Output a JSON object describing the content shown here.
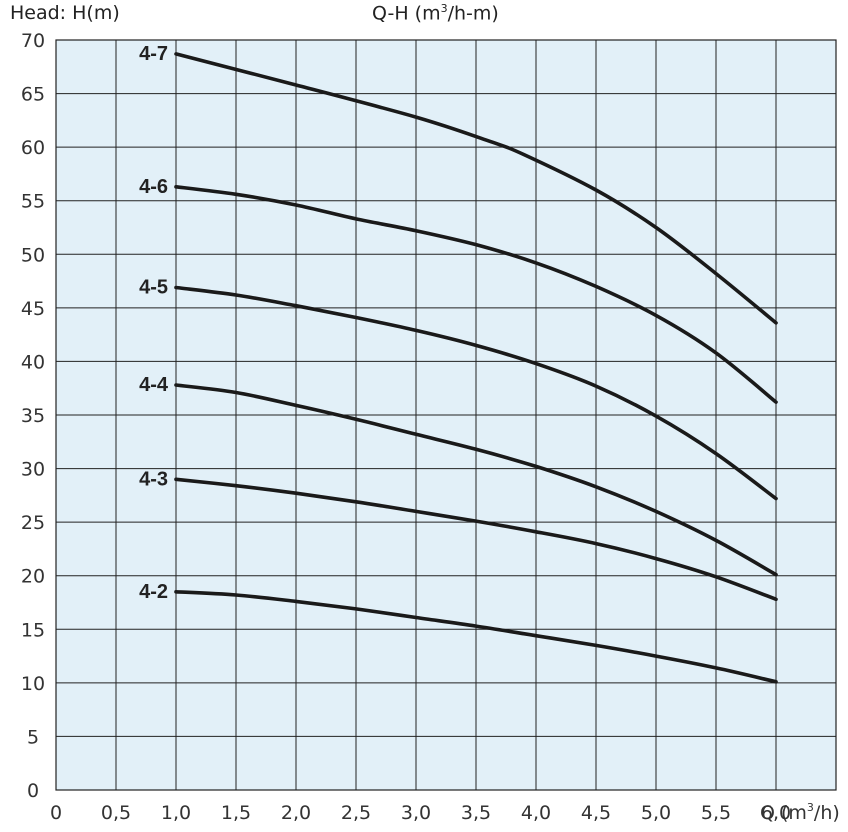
{
  "chart_data": {
    "type": "line",
    "title_main": "Q-H (m",
    "title_sup": "3",
    "title_end": "/h-m)",
    "ylabel": "Head: H(m)",
    "xlabel_main": "Q (m",
    "xlabel_sup": "3",
    "xlabel_end": "/h)",
    "xlim": [
      0,
      6.5
    ],
    "ylim": [
      0,
      70
    ],
    "xticks": [
      {
        "v": 0,
        "label": "0"
      },
      {
        "v": 0.5,
        "label": "0,5"
      },
      {
        "v": 1.0,
        "label": "1,0"
      },
      {
        "v": 1.5,
        "label": "1,5"
      },
      {
        "v": 2.0,
        "label": "2,0"
      },
      {
        "v": 2.5,
        "label": "2,5"
      },
      {
        "v": 3.0,
        "label": "3,0"
      },
      {
        "v": 3.5,
        "label": "3,5"
      },
      {
        "v": 4.0,
        "label": "4,0"
      },
      {
        "v": 4.5,
        "label": "4,5"
      },
      {
        "v": 5.0,
        "label": "5,0"
      },
      {
        "v": 5.5,
        "label": "5,5"
      },
      {
        "v": 6.0,
        "label": "6,0"
      }
    ],
    "yticks": [
      0,
      5,
      10,
      15,
      20,
      25,
      30,
      35,
      40,
      45,
      50,
      55,
      60,
      65,
      70
    ],
    "grid": true,
    "colors": {
      "background": "#e2f0f8",
      "grid": "#222222",
      "line": "#1a1a1a"
    },
    "series": [
      {
        "name": "4-7",
        "x": [
          1.0,
          2.0,
          3.0,
          3.6,
          3.9,
          4.5,
          5.0,
          5.5,
          6.0
        ],
        "y": [
          68.7,
          65.8,
          62.8,
          60.6,
          59.3,
          56.0,
          52.5,
          48.2,
          43.6
        ]
      },
      {
        "name": "4-6",
        "x": [
          1.0,
          1.5,
          2.0,
          2.5,
          3.0,
          3.5,
          4.0,
          4.5,
          5.0,
          5.5,
          6.0
        ],
        "y": [
          56.3,
          55.6,
          54.6,
          53.3,
          52.2,
          50.9,
          49.2,
          47.0,
          44.3,
          40.8,
          36.2
        ]
      },
      {
        "name": "4-5",
        "x": [
          1.0,
          1.5,
          2.0,
          2.5,
          3.0,
          3.5,
          4.0,
          4.5,
          5.0,
          5.5,
          6.0
        ],
        "y": [
          46.9,
          46.2,
          45.2,
          44.1,
          42.9,
          41.5,
          39.8,
          37.7,
          34.9,
          31.4,
          27.2
        ]
      },
      {
        "name": "4-4",
        "x": [
          1.0,
          1.5,
          2.0,
          2.5,
          3.0,
          3.5,
          4.0,
          4.5,
          5.0,
          5.5,
          6.0
        ],
        "y": [
          37.8,
          37.1,
          35.9,
          34.6,
          33.2,
          31.8,
          30.2,
          28.3,
          26.0,
          23.3,
          20.1
        ]
      },
      {
        "name": "4-3",
        "x": [
          1.0,
          1.5,
          2.0,
          2.5,
          3.0,
          3.5,
          4.0,
          4.5,
          5.0,
          5.5,
          6.0
        ],
        "y": [
          29.0,
          28.4,
          27.7,
          26.9,
          26.0,
          25.1,
          24.1,
          23.0,
          21.6,
          19.9,
          17.8
        ]
      },
      {
        "name": "4-2",
        "x": [
          1.0,
          1.5,
          2.0,
          2.5,
          3.0,
          3.5,
          4.0,
          4.5,
          5.0,
          5.5,
          6.0
        ],
        "y": [
          18.5,
          18.2,
          17.6,
          16.9,
          16.1,
          15.3,
          14.4,
          13.5,
          12.5,
          11.4,
          10.1
        ]
      }
    ]
  }
}
